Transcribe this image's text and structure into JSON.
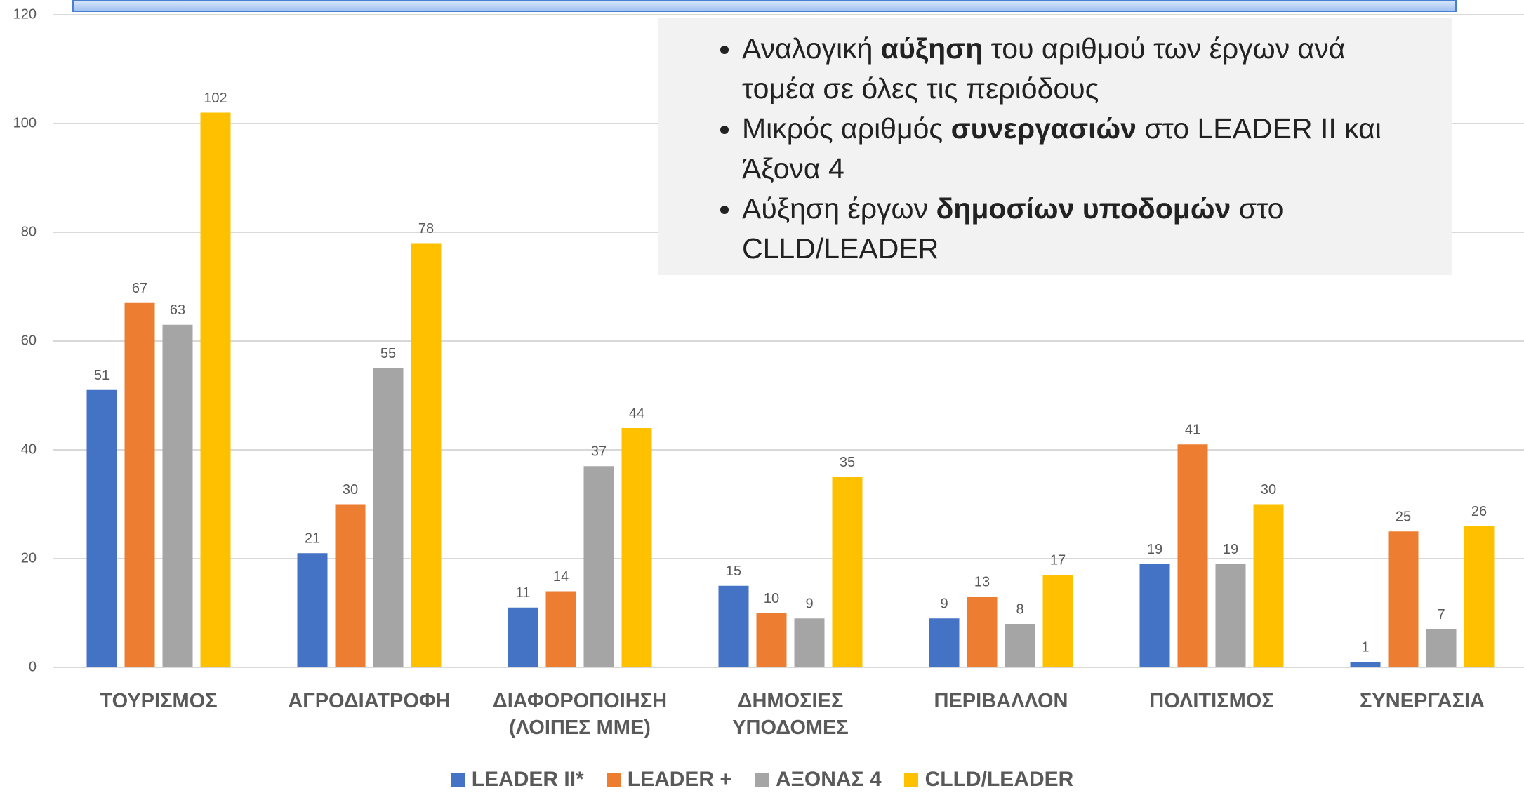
{
  "chart_data": {
    "type": "bar",
    "categories": [
      "ΤΟΥΡΙΣΜΟΣ",
      "ΑΓΡΟΔΙΑΤΡΟΦΗ",
      "ΔΙΑΦΟΡΟΠΟΙΗΣΗ (ΛΟΙΠΕΣ ΜΜΕ)",
      "ΔΗΜΟΣΙΕΣ ΥΠΟΔΟΜΕΣ",
      "ΠΕΡΙΒΑΛΛΟΝ",
      "ΠΟΛΙΤΙΣΜΟΣ",
      "ΣΥΝΕΡΓΑΣΙΑ"
    ],
    "series": [
      {
        "name": "LEADER II*",
        "color": "#4472c4",
        "values": [
          51,
          21,
          11,
          15,
          9,
          19,
          1
        ]
      },
      {
        "name": "LEADER +",
        "color": "#ed7d31",
        "values": [
          67,
          30,
          14,
          10,
          13,
          41,
          25
        ]
      },
      {
        "name": "ΑΞΟΝΑΣ 4",
        "color": "#a5a5a5",
        "values": [
          63,
          55,
          37,
          9,
          8,
          19,
          7
        ]
      },
      {
        "name": "CLLD/LEADER",
        "color": "#ffc000",
        "values": [
          102,
          78,
          44,
          35,
          17,
          30,
          26
        ]
      }
    ],
    "ylim": [
      0,
      120
    ],
    "yticks": [
      0,
      20,
      40,
      60,
      80,
      100,
      120
    ],
    "grid": true,
    "legend": "bottom",
    "annotation": [
      [
        "Αναλογική ",
        "αύξηση",
        " του αριθμού των έργων ανά τομέα σε όλες τις περιόδους"
      ],
      [
        "Μικρός αριθμός ",
        "συνεργασιών",
        " στο LEADER II και Άξονα 4"
      ],
      [
        "Αύξηση έργων ",
        "δημοσίων υποδομών",
        " στο CLLD/LEADER"
      ]
    ]
  }
}
